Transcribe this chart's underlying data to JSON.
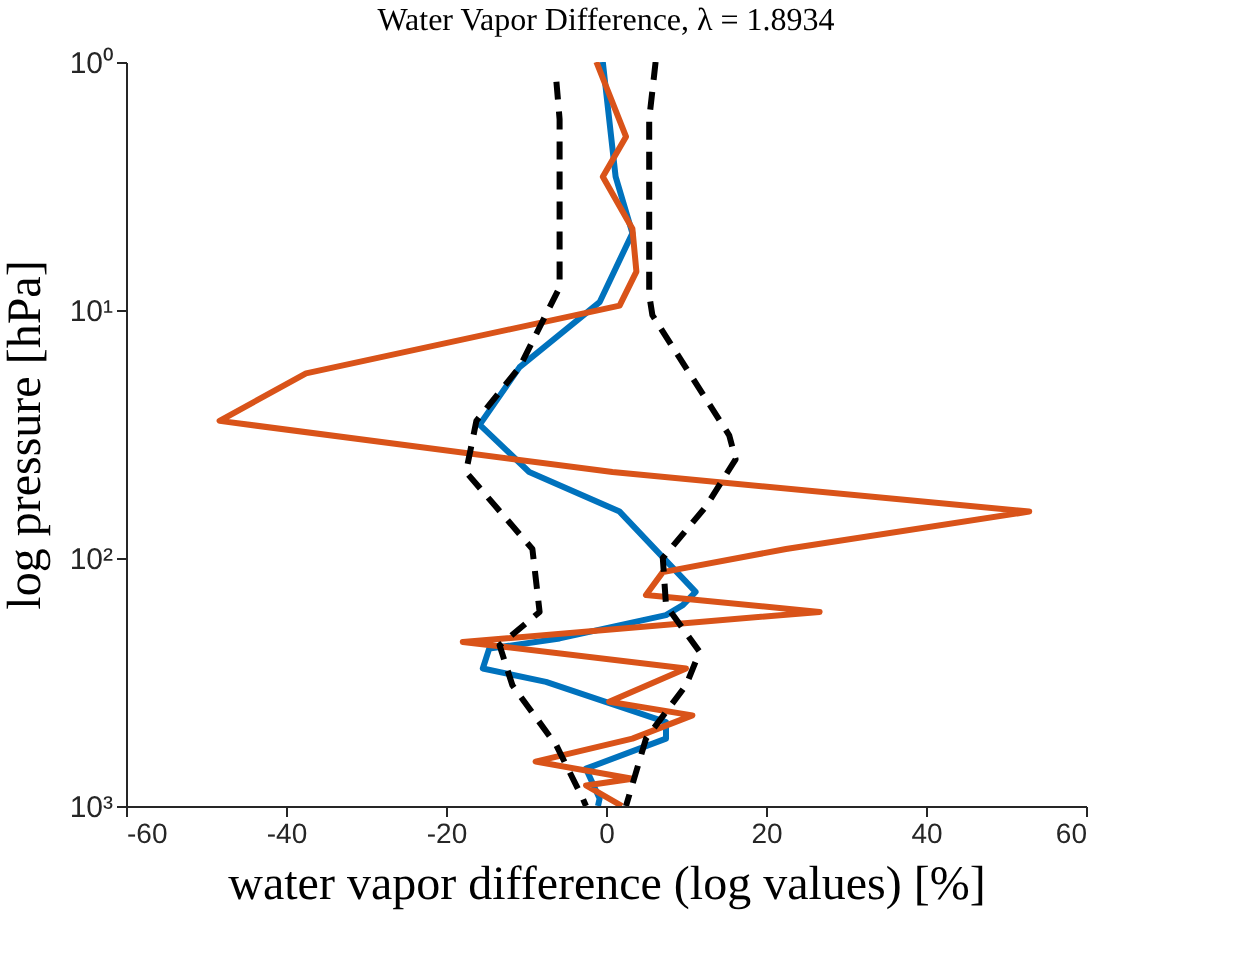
{
  "chart_data": {
    "type": "line",
    "title": "Water Vapor Difference, λ = 1.8934",
    "xlabel": "water vapor difference (log values) [%]",
    "ylabel": "log pressure [hPa]",
    "xlim": [
      -60,
      60
    ],
    "xticks": [
      -60,
      -40,
      -20,
      0,
      20,
      40,
      60
    ],
    "ylim": [
      1000,
      1
    ],
    "yticks": [
      {
        "value": 1,
        "label": "10⁰"
      },
      {
        "value": 10,
        "label": "10¹"
      },
      {
        "value": 100,
        "label": "10²"
      },
      {
        "value": 1000,
        "label": "10³"
      }
    ],
    "log": "y",
    "grid": false,
    "marker": "none",
    "series": [
      {
        "color": "#0072bd",
        "line_style": "solid",
        "x": [
          -0.4,
          1.2,
          3.3,
          -0.8,
          -10.8,
          -15.8,
          -9.6,
          1.7,
          11.2,
          9.6,
          7.5,
          -5.8,
          -14.6,
          -15.4,
          -7.5,
          7.5,
          7.5,
          -2.5,
          -0.8,
          -1
        ],
        "values": [
          1,
          2.9,
          4.9,
          9.3,
          17,
          29,
          45,
          65,
          137,
          155,
          170,
          211,
          232,
          279,
          316,
          459,
          535,
          707,
          933,
          1000
        ]
      },
      {
        "color": "#d95319",
        "line_style": "solid",
        "x": [
          -1.2,
          2.5,
          -0.4,
          3.3,
          3.8,
          1.7,
          -37.5,
          -48.3,
          0.8,
          52.9,
          22.5,
          7.1,
          5,
          26.7,
          -17.9,
          10,
          0.4,
          10.8,
          3.3,
          -8.8,
          3.3,
          -2.5,
          2
        ],
        "values": [
          1,
          2,
          2.9,
          4.7,
          7,
          9.6,
          18,
          28,
          45,
          65,
          92,
          114,
          141,
          165,
          218,
          279,
          380,
          431,
          535,
          662,
          777,
          826,
          1000
        ]
      },
      {
        "color": "#000000",
        "line_style": "dashed",
        "x": [
          -6.2,
          -5.8,
          -5.8,
          -10.8,
          -16.2,
          -17.5,
          -9.2,
          -8.3,
          -13.3,
          -11.7,
          -6.2,
          -2.9,
          -2.5
        ],
        "values": [
          1.2,
          1.7,
          8.1,
          17,
          28,
          45,
          92,
          165,
          225,
          326,
          570,
          933,
          1000
        ]
      },
      {
        "color": "#000000",
        "line_style": "dashed",
        "x": [
          6.2,
          5.4,
          5.4,
          5.8,
          15.4,
          16.2,
          12.5,
          7.1,
          7.5,
          11.7,
          10,
          5,
          2.5
        ],
        "values": [
          1,
          1.7,
          8.7,
          10.5,
          32,
          40,
          62,
          100,
          155,
          239,
          326,
          535,
          1000
        ]
      }
    ]
  }
}
